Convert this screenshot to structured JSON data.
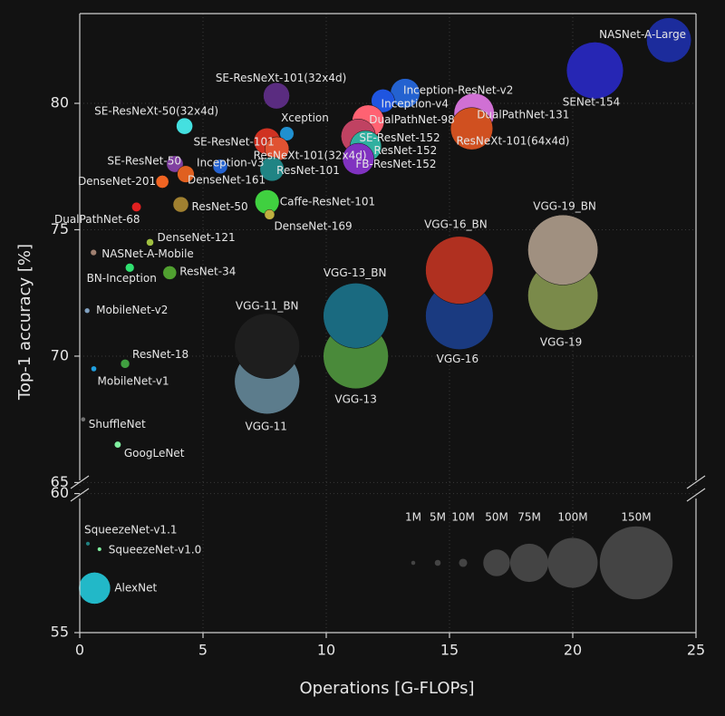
{
  "chart_data": [
    {
      "type": "bubble",
      "ylabel": "Top-1 accuracy [%]",
      "xlim": [
        0,
        25
      ],
      "ylim": [
        64.8,
        83.55
      ],
      "yticks": [
        65,
        70,
        75,
        80
      ],
      "grid": true,
      "points": [
        {
          "name": "NASNet-A-Large",
          "x": 23.9,
          "y": 82.5,
          "size": 88.9,
          "color": "#1c2c9c"
        },
        {
          "name": "SENet-154",
          "x": 20.9,
          "y": 81.3,
          "size": 115.1,
          "color": "#2626b4"
        },
        {
          "name": "SE-ResNeXt-101(32x4d)",
          "x": 7.98,
          "y": 80.3,
          "size": 49,
          "color": "#5a2c80"
        },
        {
          "name": "Inception-ResNet-v2",
          "x": 13.2,
          "y": 80.4,
          "size": 55.8,
          "color": "#2462d0"
        },
        {
          "name": "Inception-v4",
          "x": 12.3,
          "y": 80.1,
          "size": 42.7,
          "color": "#1f55e0"
        },
        {
          "name": "DualPathNet-131",
          "x": 16.0,
          "y": 79.6,
          "size": 79.5,
          "color": "#d070d4"
        },
        {
          "name": "DualPathNet-98",
          "x": 11.7,
          "y": 79.3,
          "size": 61.6,
          "color": "#ff6272"
        },
        {
          "name": "SE-ResNeXt-50(32x4d)",
          "x": 4.25,
          "y": 79.1,
          "size": 27.6,
          "color": "#44e0e0"
        },
        {
          "name": "Xception",
          "x": 8.4,
          "y": 78.8,
          "size": 22.9,
          "color": "#2090d0"
        },
        {
          "name": "ResNeXt-101(64x4d)",
          "x": 15.9,
          "y": 79.0,
          "size": 83.5,
          "color": "#d05020"
        },
        {
          "name": "SE-ResNet-152",
          "x": 11.3,
          "y": 78.7,
          "size": 66.8,
          "color": "#c04262"
        },
        {
          "name": "SE-ResNet-101",
          "x": 7.6,
          "y": 78.5,
          "size": 49.3,
          "color": "#d03222"
        },
        {
          "name": "ResNeXt-101(32x4d)",
          "x": 8.0,
          "y": 78.2,
          "size": 44.2,
          "color": "#e05232"
        },
        {
          "name": "ResNet-152",
          "x": 11.6,
          "y": 78.3,
          "size": 60.2,
          "color": "#30b0a0"
        },
        {
          "name": "FB-ResNet-152",
          "x": 11.3,
          "y": 77.8,
          "size": 60.2,
          "color": "#8032c0"
        },
        {
          "name": "ResNet-101",
          "x": 7.8,
          "y": 77.4,
          "size": 44.5,
          "color": "#208484"
        },
        {
          "name": "SE-ResNet-50",
          "x": 3.86,
          "y": 77.6,
          "size": 28,
          "color": "#8040a0"
        },
        {
          "name": "Inception-v3",
          "x": 5.7,
          "y": 77.5,
          "size": 23.8,
          "color": "#2462d0"
        },
        {
          "name": "DenseNet-161",
          "x": 4.3,
          "y": 77.2,
          "size": 28.7,
          "color": "#e06020"
        },
        {
          "name": "DenseNet-201",
          "x": 3.35,
          "y": 76.9,
          "size": 20,
          "color": "#f06422"
        },
        {
          "name": "ResNet-50",
          "x": 4.1,
          "y": 76.0,
          "size": 25.6,
          "color": "#a08030"
        },
        {
          "name": "Caffe-ResNet-101",
          "x": 7.6,
          "y": 76.1,
          "size": 44.5,
          "color": "#40d040"
        },
        {
          "name": "DenseNet-169",
          "x": 7.7,
          "y": 75.6,
          "size": 14.1,
          "color": "#c0b040"
        },
        {
          "name": "DualPathNet-68",
          "x": 2.3,
          "y": 75.9,
          "size": 12.6,
          "color": "#e02020"
        },
        {
          "name": "DenseNet-121",
          "x": 2.85,
          "y": 74.5,
          "size": 8,
          "color": "#a0c040"
        },
        {
          "name": "NASNet-A-Mobile",
          "x": 0.56,
          "y": 74.1,
          "size": 5.3,
          "color": "#a08070"
        },
        {
          "name": "BN-Inception",
          "x": 2.03,
          "y": 73.5,
          "size": 11.3,
          "color": "#30e070"
        },
        {
          "name": "ResNet-34",
          "x": 3.65,
          "y": 73.3,
          "size": 21.8,
          "color": "#50a030"
        },
        {
          "name": "MobileNet-v2",
          "x": 0.3,
          "y": 71.8,
          "size": 3.5,
          "color": "#80a0c0"
        },
        {
          "name": "VGG-11",
          "x": 7.6,
          "y": 69.0,
          "size": 132.9,
          "color": "#5c7c8c"
        },
        {
          "name": "VGG-11_BN",
          "x": 7.6,
          "y": 70.4,
          "size": 132.9,
          "color": "#1e1e1e"
        },
        {
          "name": "VGG-13",
          "x": 11.2,
          "y": 70.0,
          "size": 133,
          "color": "#4a8a3a"
        },
        {
          "name": "VGG-13_BN",
          "x": 11.2,
          "y": 71.6,
          "size": 133,
          "color": "#1a6a80"
        },
        {
          "name": "VGG-16",
          "x": 15.4,
          "y": 71.6,
          "size": 138.4,
          "color": "#1a3a80"
        },
        {
          "name": "VGG-16_BN",
          "x": 15.4,
          "y": 73.4,
          "size": 138.4,
          "color": "#b03020"
        },
        {
          "name": "VGG-19",
          "x": 19.6,
          "y": 72.4,
          "size": 143.7,
          "color": "#7a8a4a"
        },
        {
          "name": "VGG-19_BN",
          "x": 19.6,
          "y": 74.2,
          "size": 143.7,
          "color": "#a09080"
        },
        {
          "name": "ResNet-18",
          "x": 1.84,
          "y": 69.7,
          "size": 11.7,
          "color": "#40a040"
        },
        {
          "name": "MobileNet-v1",
          "x": 0.57,
          "y": 69.5,
          "size": 4.2,
          "color": "#20a0e0"
        },
        {
          "name": "ShuffleNet",
          "x": 0.14,
          "y": 67.5,
          "size": 2.3,
          "color": "#707070"
        },
        {
          "name": "GoogLeNet",
          "x": 1.54,
          "y": 66.5,
          "size": 6.6,
          "color": "#80f0a0"
        }
      ]
    },
    {
      "type": "bubble",
      "xlabel": "Operations [G-FLOPs]",
      "xlim": [
        0,
        25
      ],
      "xticks": [
        0,
        5,
        10,
        15,
        20,
        25
      ],
      "ylim": [
        55,
        60.15
      ],
      "yticks": [
        55,
        60
      ],
      "grid": true,
      "points": [
        {
          "name": "SqueezeNet-v1.1",
          "x": 0.33,
          "y": 58.2,
          "size": 1.2,
          "color": "#208080"
        },
        {
          "name": "SqueezeNet-v1.0",
          "x": 0.8,
          "y": 58.0,
          "size": 1.2,
          "color": "#80f0a0"
        },
        {
          "name": "AlexNet",
          "x": 0.6,
          "y": 56.6,
          "size": 61,
          "color": "#22b8c8"
        }
      ],
      "size_legend": {
        "values": [
          1,
          5,
          10,
          50,
          75,
          100,
          150
        ],
        "value_labels": [
          "1M",
          "5M",
          "10M",
          "50M",
          "75M",
          "100M",
          "150M"
        ],
        "color": "#444444"
      }
    }
  ]
}
